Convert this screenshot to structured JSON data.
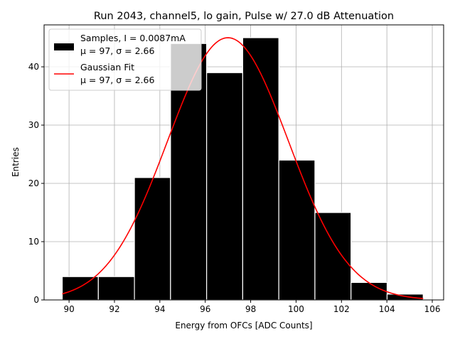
{
  "chart_data": {
    "type": "bar",
    "title": "Run 2043, channel5, lo gain, Pulse w/ 27.0 dB Attenuation",
    "xlabel": "Energy from OFCs [ADC Counts]",
    "ylabel": "Entries",
    "xlim": [
      88.9,
      106.5
    ],
    "ylim": [
      0,
      47.2
    ],
    "xticks": [
      90,
      92,
      94,
      96,
      98,
      100,
      102,
      104,
      106
    ],
    "yticks": [
      0,
      10,
      20,
      30,
      40
    ],
    "grid": true,
    "legend_position": "top-left",
    "histogram": {
      "bin_edges": [
        89.7,
        91.29,
        92.88,
        94.47,
        96.06,
        97.65,
        99.24,
        100.83,
        102.42,
        104.01,
        105.6
      ],
      "counts": [
        4,
        4,
        21,
        44,
        39,
        45,
        24,
        15,
        3,
        1
      ],
      "color": "#000000",
      "edgecolor": "#ffffff"
    },
    "fit": {
      "type": "gaussian",
      "mu": 97,
      "sigma": 2.66,
      "amplitude": 45,
      "x_range": [
        89.7,
        105.6
      ],
      "color": "#ff0000"
    },
    "legend": [
      {
        "label_line1": "Samples, I = 0.0087mA",
        "label_line2": "μ = 97, σ = 2.66",
        "kind": "patch",
        "color": "#000000"
      },
      {
        "label_line1": "Gaussian Fit",
        "label_line2": "μ = 97, σ = 2.66",
        "kind": "line",
        "color": "#ff0000"
      }
    ]
  }
}
